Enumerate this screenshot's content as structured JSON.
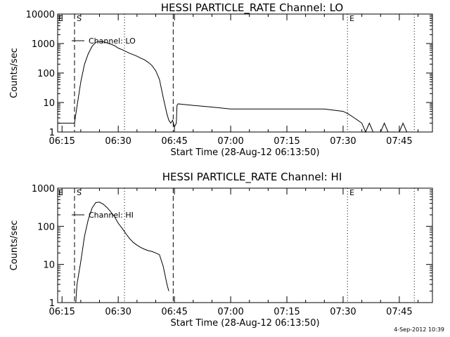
{
  "footer": {
    "stamp": "4-Sep-2012 10:39"
  },
  "chart_data": [
    {
      "type": "line",
      "title": "HESSI PARTICLE_RATE Channel: LO",
      "xlabel": "Start Time (28-Aug-12 06:13:50)",
      "ylabel": "Counts/sec",
      "y_scale": "log",
      "ylim": [
        1,
        10000
      ],
      "y_ticks": [
        1,
        10,
        100,
        1000,
        10000
      ],
      "y_tick_labels": [
        "1",
        "10",
        "100",
        "1000",
        "10000"
      ],
      "xlim": [
        "06:13:50",
        "07:53:50"
      ],
      "x_ticks": [
        "06:15",
        "06:30",
        "06:45",
        "07:00",
        "07:15",
        "07:30",
        "07:45"
      ],
      "legend": {
        "label": "Channel: LO",
        "placement": "top-left"
      },
      "markers": [
        {
          "label": "S",
          "time": "06:18:20",
          "style": "dashed"
        },
        {
          "label": "",
          "time": "06:31:40",
          "style": "dotted"
        },
        {
          "label": "",
          "time": "06:44:40",
          "style": "dashed"
        },
        {
          "label": "E",
          "time": "07:31:10",
          "style": "dotted"
        },
        {
          "label": "",
          "time": "07:49:00",
          "style": "dotted"
        }
      ],
      "series": [
        {
          "x": [
            "06:13:50",
            "06:18:20",
            "06:18:40",
            "06:20:00",
            "06:21:00",
            "06:22:00",
            "06:23:00",
            "06:24:00",
            "06:25:00",
            "06:26:00",
            "06:27:00",
            "06:28:00",
            "06:29:00",
            "06:30:00",
            "06:31:00",
            "06:32:00",
            "06:33:00",
            "06:34:00",
            "06:35:00",
            "06:36:00",
            "06:37:00",
            "06:38:00",
            "06:39:00",
            "06:40:00",
            "06:41:00",
            "06:42:00",
            "06:43:00",
            "06:43:30",
            "06:44:00",
            "06:44:30",
            "06:45:00",
            "06:45:30",
            "06:45:40",
            "06:46:00",
            "06:50:00",
            "06:55:00",
            "07:00:00",
            "07:05:00",
            "07:10:00",
            "07:15:00",
            "07:20:00",
            "07:25:00",
            "07:30:00",
            "07:31:30",
            "07:33:00",
            "07:35:00",
            "07:36:00",
            "07:37:00",
            "07:38:00",
            "07:40:00",
            "07:41:00",
            "07:42:00",
            "07:45:00",
            "07:46:00",
            "07:47:00"
          ],
          "y": [
            2,
            2,
            4,
            50,
            200,
            450,
            800,
            1100,
            1200,
            1150,
            1050,
            950,
            850,
            700,
            620,
            540,
            470,
            420,
            370,
            320,
            280,
            230,
            180,
            120,
            60,
            15,
            4,
            2.5,
            2,
            2.5,
            1.5,
            2,
            8,
            9,
            8,
            7,
            6,
            6,
            6,
            6,
            6,
            6,
            5,
            4,
            3,
            2,
            1,
            2,
            1,
            1,
            2,
            1,
            1,
            2,
            1
          ]
        }
      ]
    },
    {
      "type": "line",
      "title": "HESSI PARTICLE_RATE Channel: HI",
      "xlabel": "Start Time (28-Aug-12 06:13:50)",
      "ylabel": "Counts/sec",
      "y_scale": "log",
      "ylim": [
        1,
        1000
      ],
      "y_ticks": [
        1,
        10,
        100,
        1000
      ],
      "y_tick_labels": [
        "1",
        "10",
        "100",
        "1000"
      ],
      "xlim": [
        "06:13:50",
        "07:53:50"
      ],
      "x_ticks": [
        "06:15",
        "06:30",
        "06:45",
        "07:00",
        "07:15",
        "07:30",
        "07:45"
      ],
      "legend": {
        "label": "Channel: HI",
        "placement": "top-left"
      },
      "markers": [
        {
          "label": "S",
          "time": "06:18:20",
          "style": "dashed"
        },
        {
          "label": "",
          "time": "06:31:40",
          "style": "dotted"
        },
        {
          "label": "",
          "time": "06:44:40",
          "style": "dashed"
        },
        {
          "label": "E",
          "time": "07:31:10",
          "style": "dotted"
        },
        {
          "label": "",
          "time": "07:49:00",
          "style": "dotted"
        }
      ],
      "series": [
        {
          "x": [
            "06:18:40",
            "06:19:00",
            "06:20:00",
            "06:21:00",
            "06:22:00",
            "06:23:00",
            "06:24:00",
            "06:25:00",
            "06:26:00",
            "06:27:00",
            "06:28:00",
            "06:29:00",
            "06:30:00",
            "06:31:00",
            "06:32:00",
            "06:33:00",
            "06:34:00",
            "06:35:00",
            "06:36:00",
            "06:37:00",
            "06:38:00",
            "06:39:00",
            "06:40:00",
            "06:41:00",
            "06:42:00",
            "06:43:00",
            "06:43:30"
          ],
          "y": [
            1,
            3,
            12,
            55,
            150,
            300,
            420,
            430,
            380,
            310,
            240,
            180,
            120,
            90,
            65,
            48,
            38,
            32,
            28,
            25,
            23,
            22,
            20,
            18,
            9,
            3,
            2
          ]
        }
      ]
    }
  ]
}
